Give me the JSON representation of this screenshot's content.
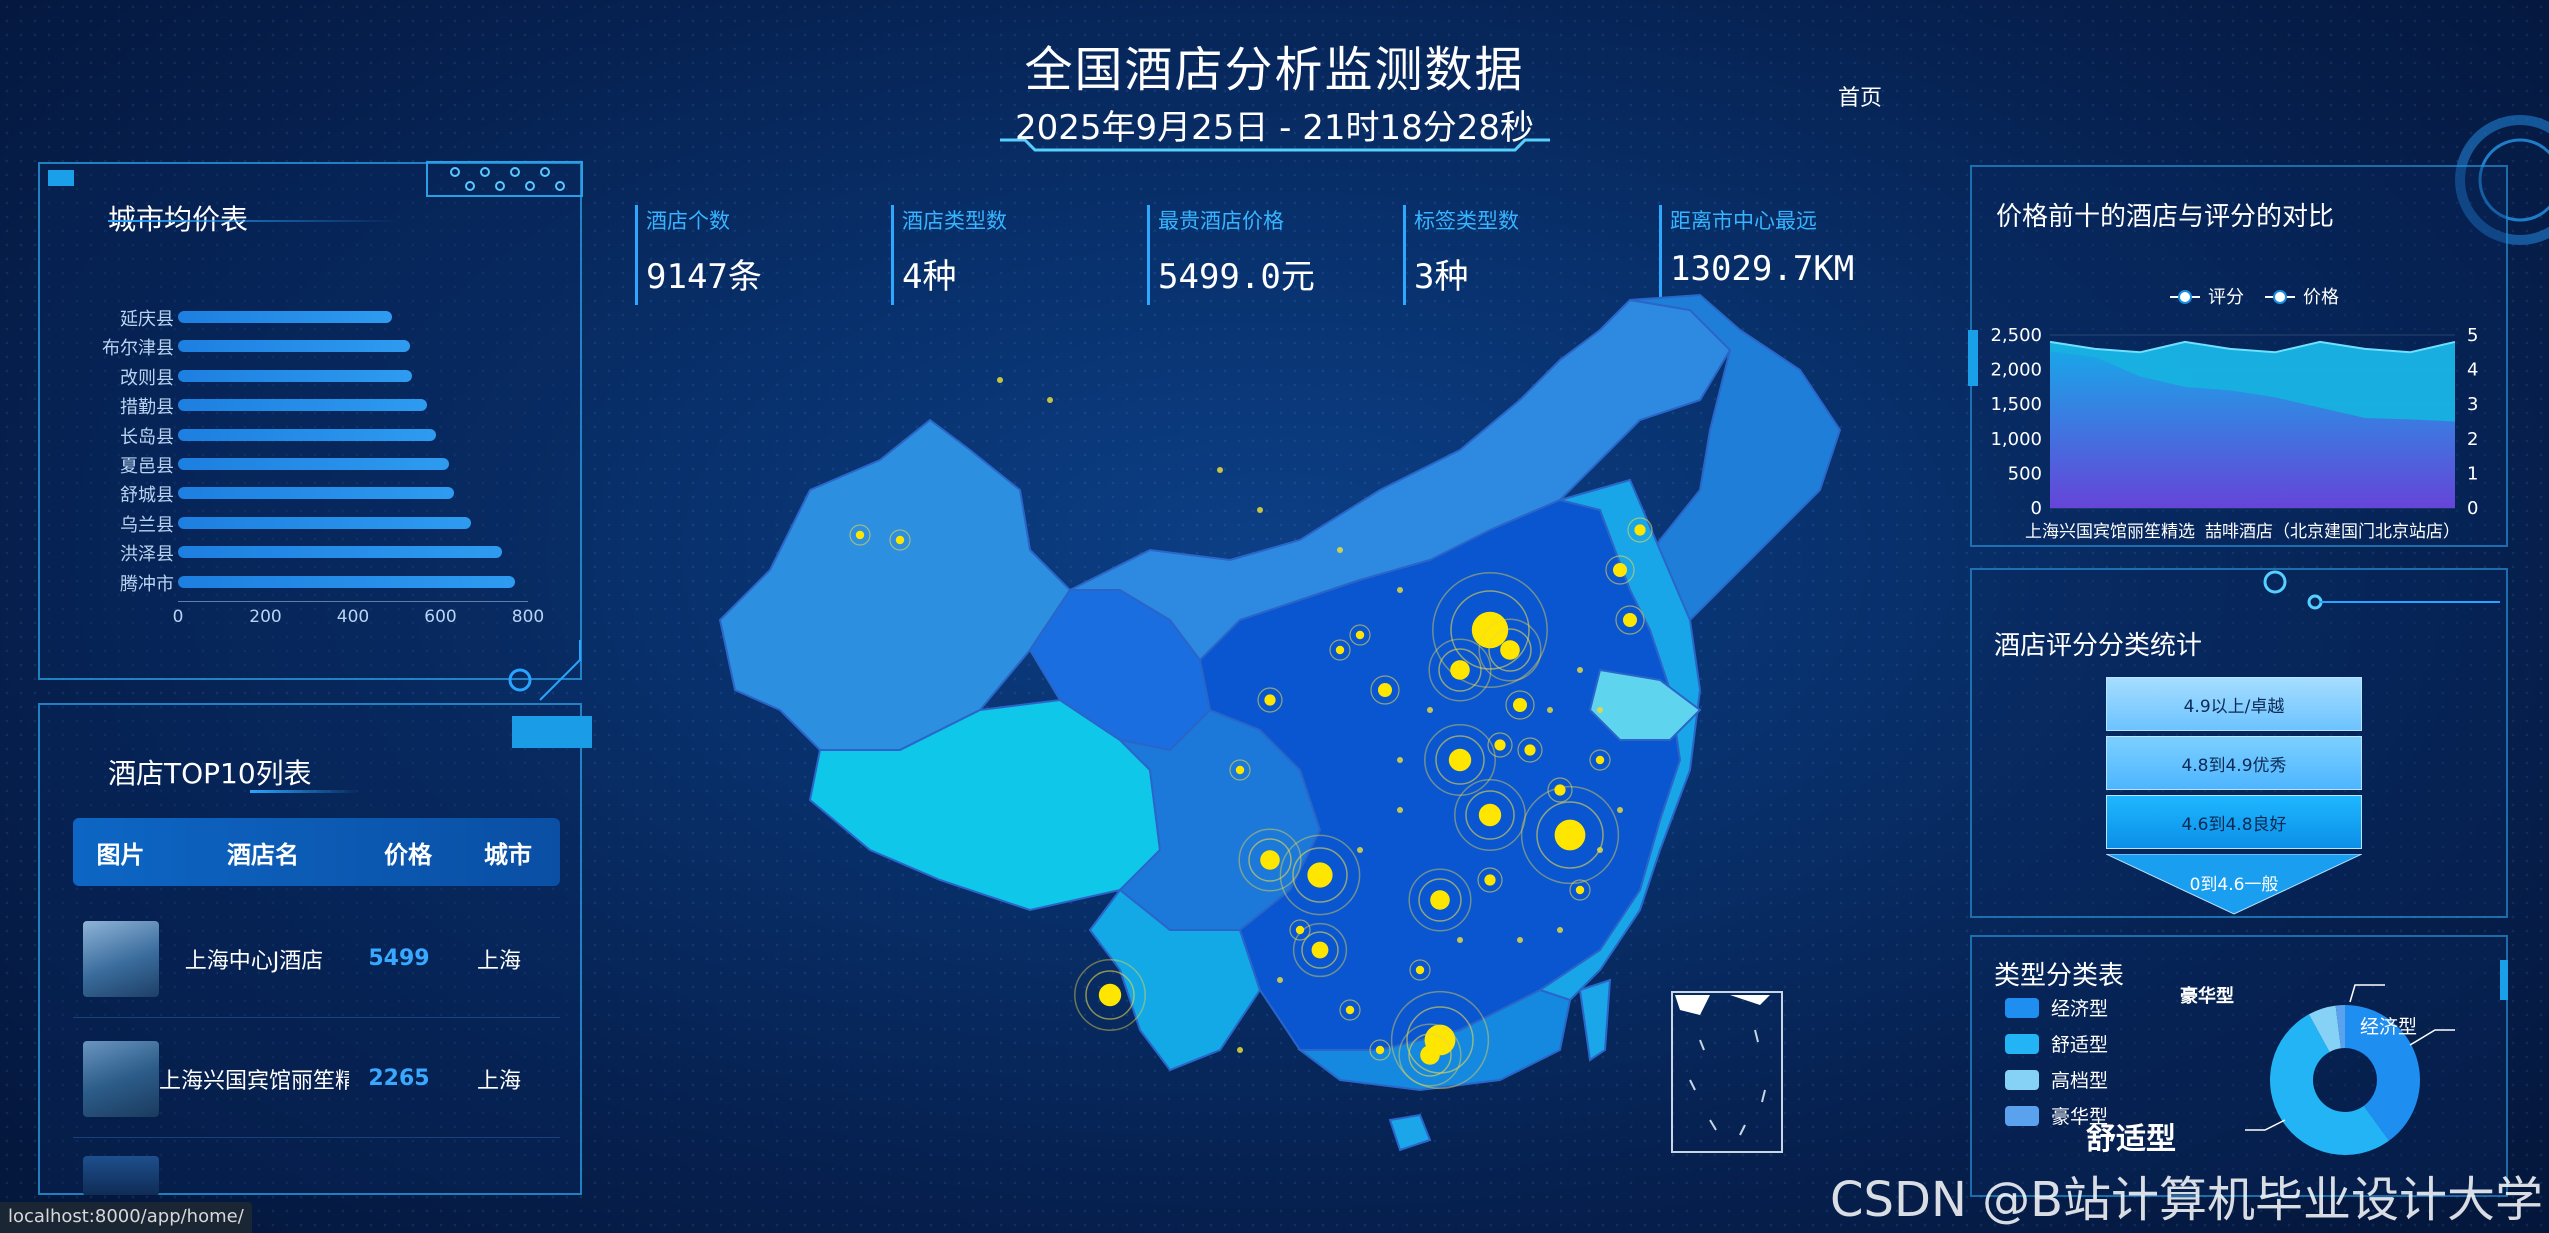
{
  "header": {
    "title": "全国酒店分析监测数据",
    "datetime": "2025年9月25日 - 21时18分28秒",
    "nav_home": "首页"
  },
  "stats": [
    {
      "label": "酒店个数",
      "value": "9147条"
    },
    {
      "label": "酒店类型数",
      "value": "4种"
    },
    {
      "label": "最贵酒店价格",
      "value": "5499.0元"
    },
    {
      "label": "标签类型数",
      "value": "3种"
    },
    {
      "label": "距离市中心最远",
      "value": "13029.7KM"
    }
  ],
  "city_avg_price": {
    "title": "城市均价表",
    "chart_data": {
      "type": "bar",
      "orientation": "horizontal",
      "categories": [
        "延庆县",
        "布尔津县",
        "改则县",
        "措勤县",
        "长岛县",
        "夏邑县",
        "舒城县",
        "乌兰县",
        "洪泽县",
        "腾冲市"
      ],
      "values": [
        490,
        530,
        535,
        570,
        590,
        620,
        630,
        670,
        740,
        770
      ],
      "xticks": [
        "0",
        "200",
        "400",
        "600",
        "800"
      ],
      "xlim": [
        0,
        800
      ],
      "color": "#2e9bf0"
    }
  },
  "top10": {
    "title": "酒店TOP10列表",
    "columns": [
      "图片",
      "酒店名",
      "价格",
      "城市"
    ],
    "rows": [
      {
        "name": "上海中心J酒店",
        "price": "5499",
        "city": "上海"
      },
      {
        "name": "上海兴国宾馆丽笙精选",
        "price": "2265",
        "city": "上海"
      },
      {
        "name": "",
        "price": "",
        "city": ""
      }
    ]
  },
  "price_score": {
    "title": "价格前十的酒店与评分的对比",
    "chart_data": {
      "type": "area",
      "legend": [
        "评分",
        "价格"
      ],
      "legend_position": "top-center",
      "x_labels_shown": [
        "上海兴国宾馆丽笙精选",
        "喆啡酒店（北京建国门北京站店）"
      ],
      "y_left_ticks": [
        "0",
        "500",
        "1,000",
        "1,500",
        "2,000",
        "2,500"
      ],
      "y_right_ticks": [
        "0",
        "1",
        "2",
        "3",
        "4",
        "5"
      ],
      "y_left_range": [
        0,
        2500
      ],
      "y_right_range": [
        0,
        5
      ],
      "series": [
        {
          "name": "评分",
          "values": [
            4.8,
            4.6,
            4.5,
            4.8,
            4.6,
            4.5,
            4.8,
            4.6,
            4.5,
            4.8
          ]
        },
        {
          "name": "价格",
          "values": [
            2265,
            2180,
            1900,
            1750,
            1700,
            1600,
            1450,
            1300,
            1280,
            1250
          ]
        }
      ]
    }
  },
  "rating_funnel": {
    "title": "酒店评分分类统计",
    "chart_data": {
      "type": "funnel",
      "categories": [
        "4.9以上/卓越",
        "4.8到4.9优秀",
        "4.6到4.8良好",
        "0到4.6一般"
      ]
    }
  },
  "type_table": {
    "title": "类型分类表",
    "legend": [
      "经济型",
      "舒适型",
      "高档型",
      "豪华型"
    ],
    "colors": [
      "#1f8ef1",
      "#22b4f5",
      "#86d2f7",
      "#5aa2ee"
    ],
    "pie_labels": {
      "top": "豪华型",
      "right": "经济型",
      "bottom": "舒适型"
    },
    "chart_data": {
      "type": "pie",
      "categories": [
        "经济型",
        "舒适型",
        "高档型",
        "豪华型"
      ],
      "values": [
        40,
        52,
        6,
        2
      ]
    }
  },
  "watermark": "CSDN @B站计算机毕业设计大学",
  "statusbar": "localhost:8000/app/home/"
}
